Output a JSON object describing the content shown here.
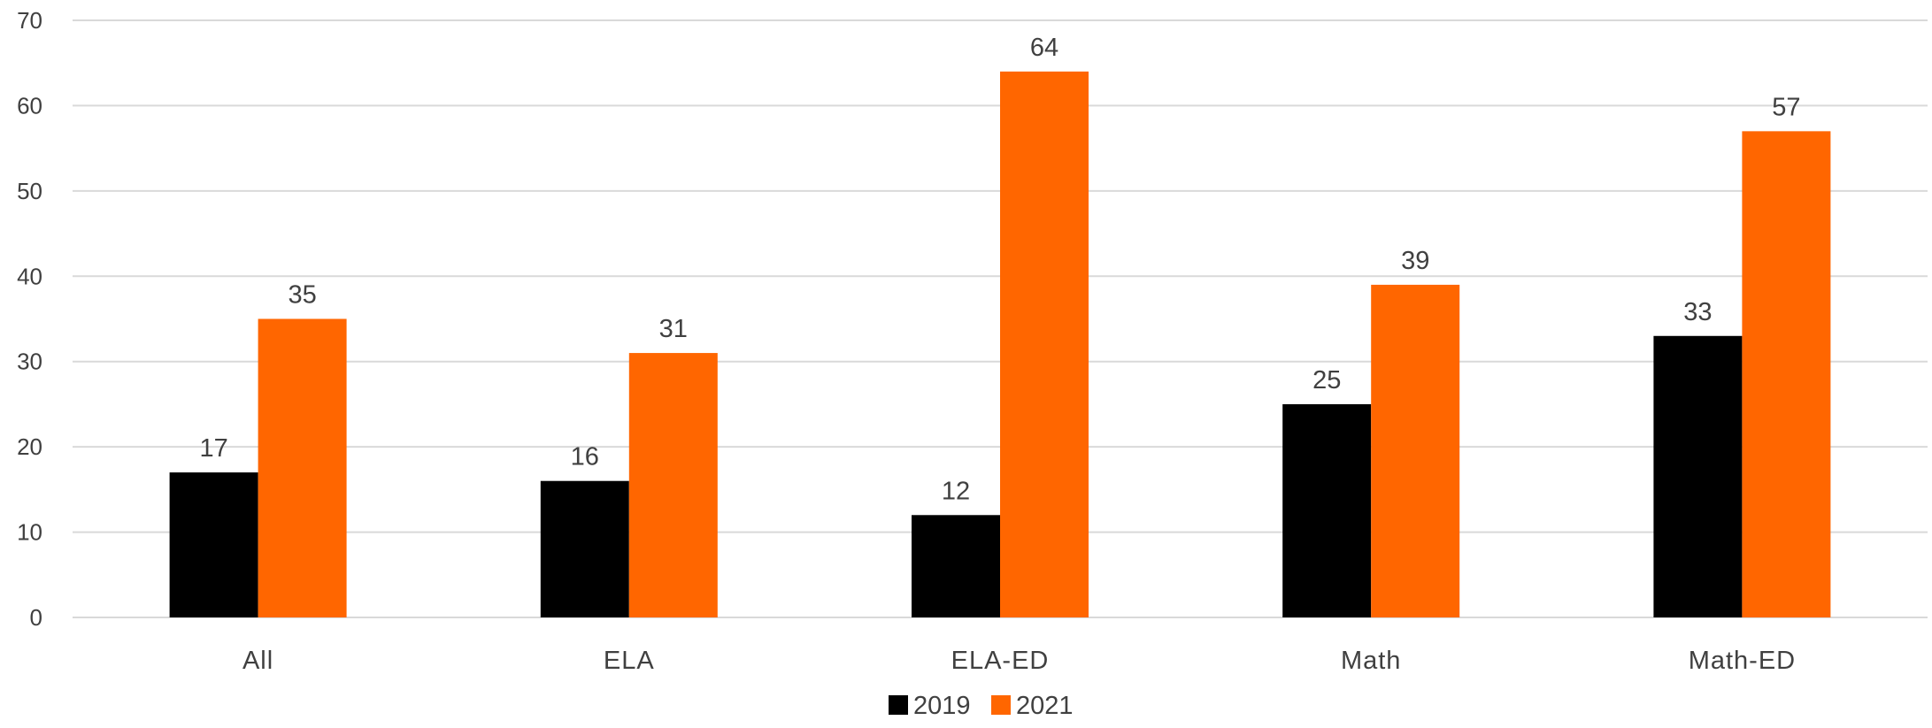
{
  "chart_data": {
    "type": "bar",
    "categories": [
      "All",
      "ELA",
      "ELA-ED",
      "Math",
      "Math-ED"
    ],
    "series": [
      {
        "name": "2019",
        "values": [
          17,
          16,
          12,
          25,
          33
        ],
        "color": "#000000"
      },
      {
        "name": "2021",
        "values": [
          35,
          31,
          64,
          39,
          57
        ],
        "color": "#FF6600"
      }
    ],
    "ylim": [
      0,
      70
    ],
    "yticks": [
      0,
      10,
      20,
      30,
      40,
      50,
      60,
      70
    ],
    "grid": true,
    "legend_position": "bottom",
    "data_labels": true
  }
}
